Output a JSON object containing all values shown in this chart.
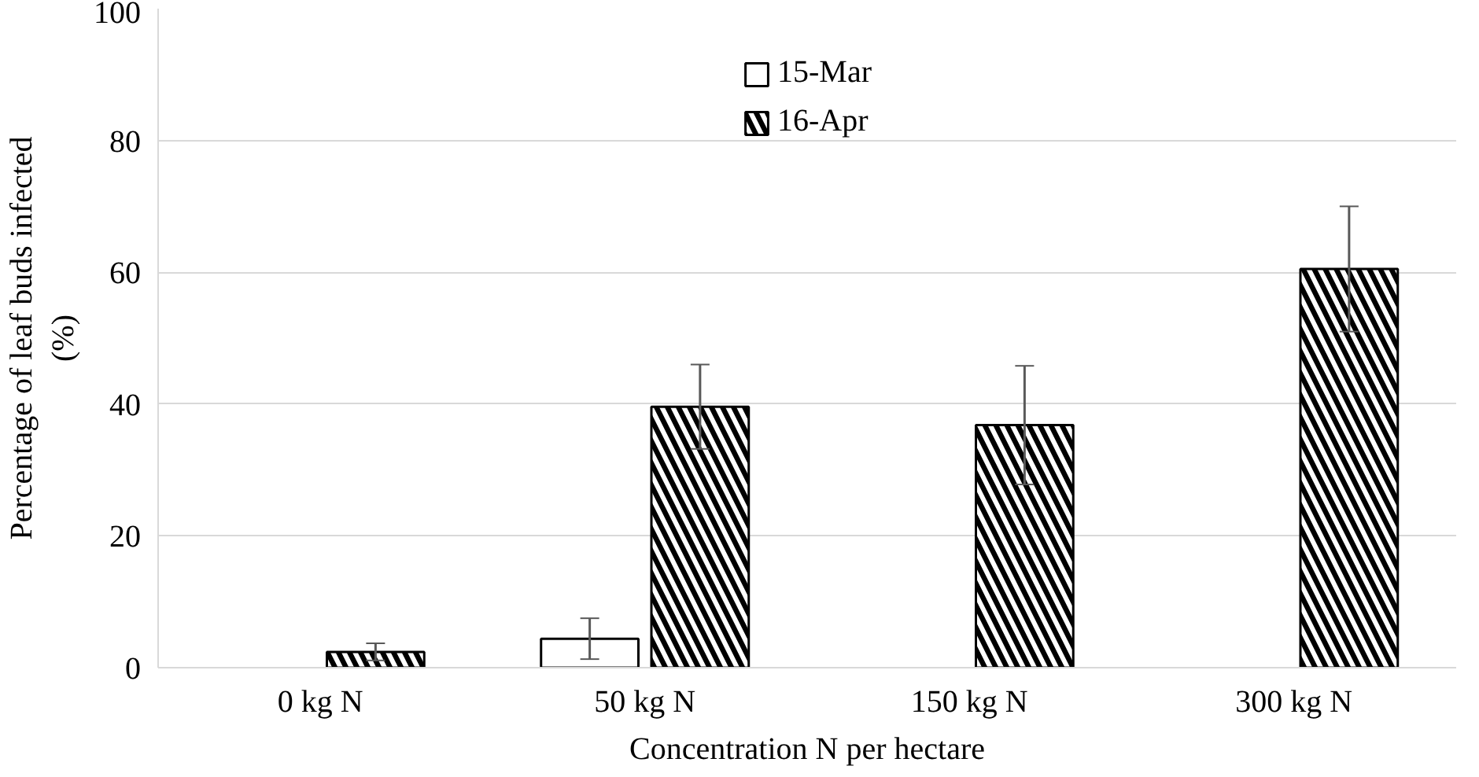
{
  "chart_data": {
    "type": "bar",
    "xlabel": "Concentration N per hectare",
    "ylabel": "Percentage of leaf buds infected\n(%)",
    "categories": [
      "0 kg N",
      "50 kg N",
      "150 kg N",
      "300 kg N"
    ],
    "series": [
      {
        "name": "15-Mar",
        "color": "#ffffff",
        "values": [
          0,
          4.4,
          0,
          0
        ],
        "errors": [
          null,
          3.1,
          null,
          null
        ]
      },
      {
        "name": "16-Apr",
        "color": "#000000",
        "values": [
          2.4,
          39.6,
          36.8,
          60.5
        ],
        "errors": [
          1.3,
          6.4,
          9.0,
          9.5
        ]
      }
    ],
    "ylim": [
      0,
      100
    ],
    "yticks": [
      0,
      20,
      40,
      60,
      80,
      100
    ],
    "grid": "y",
    "legend": "top"
  }
}
